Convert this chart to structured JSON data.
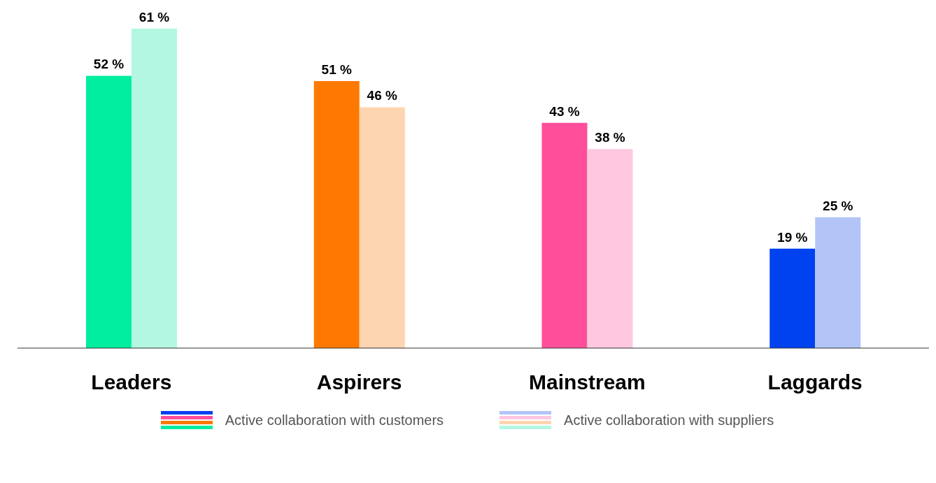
{
  "chart_data": {
    "type": "bar",
    "categories": [
      "Leaders",
      "Aspirers",
      "Mainstream",
      "Laggards"
    ],
    "series": [
      {
        "name": "Active collaboration with customers",
        "colors": [
          "#00eea0",
          "#ff7800",
          "#ff4f9a",
          "#0041f0"
        ],
        "values": [
          52,
          51,
          43,
          19
        ],
        "value_labels": [
          "52 %",
          "51 %",
          "43 %",
          "19 %"
        ]
      },
      {
        "name": "Active collaboration with suppliers",
        "colors": [
          "#b3f7e2",
          "#fdd5b1",
          "#ffc8e0",
          "#b3c5f7"
        ],
        "values": [
          61,
          46,
          38,
          25
        ],
        "value_labels": [
          "61 %",
          "46 %",
          "38 %",
          "25 %"
        ]
      }
    ],
    "legend": "bottom",
    "grid": false
  }
}
